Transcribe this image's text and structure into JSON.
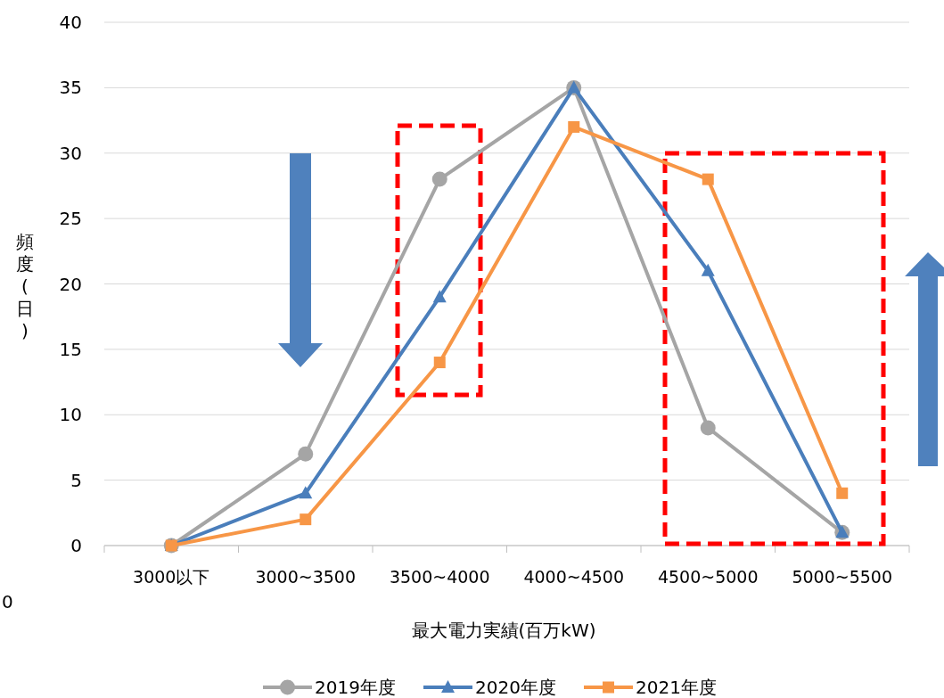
{
  "chart_data": {
    "type": "line",
    "xlabel": "最大電力実績(百万kW)",
    "ylabel": "頻度(日)",
    "categories": [
      "3000以下",
      "3000~3500",
      "3500~4000",
      "4000~4500",
      "4500~5000",
      "5000~5500"
    ],
    "series": [
      {
        "name": "2019年度",
        "color": "#a5a5a5",
        "marker": "circle",
        "values": [
          0,
          7,
          28,
          35,
          9,
          1
        ]
      },
      {
        "name": "2020年度",
        "color": "#4a7ebb",
        "marker": "triangle",
        "values": [
          0,
          4,
          19,
          35,
          21,
          1
        ]
      },
      {
        "name": "2021年度",
        "color": "#f79646",
        "marker": "square",
        "values": [
          0,
          2,
          14,
          32,
          28,
          4
        ]
      }
    ],
    "ylim": [
      0,
      40
    ],
    "yticks": [
      0,
      5,
      10,
      15,
      20,
      25,
      30,
      35,
      40
    ],
    "grid": "y",
    "legend": "bottom",
    "line_style": "solid",
    "annotations": [
      "0"
    ]
  }
}
